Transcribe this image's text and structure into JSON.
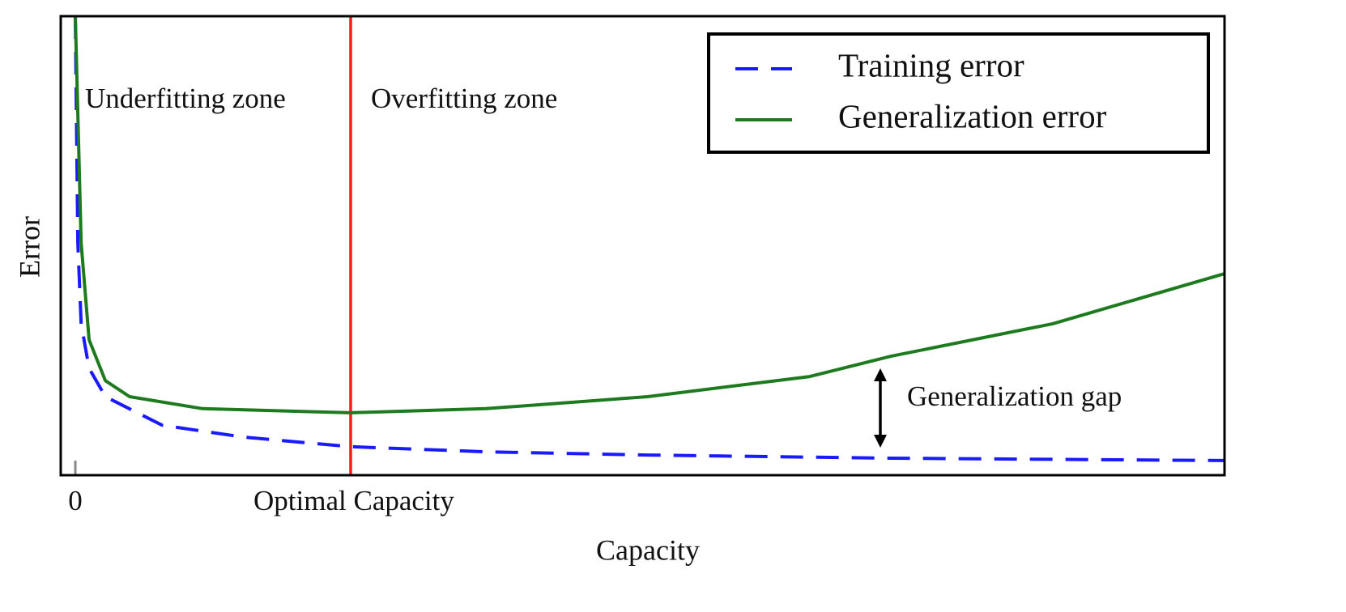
{
  "chart_data": {
    "type": "line",
    "xlabel": "Capacity",
    "ylabel": "Error",
    "xlim": [
      -0.053,
      4.174
    ],
    "ylim": [
      0,
      10
    ],
    "xticks": [
      0,
      {
        "value": 1,
        "label": "Optimal Capacity"
      }
    ],
    "legend": "upper right",
    "annotations": [
      "Underfitting zone",
      "Overfitting zone",
      "Generalization gap"
    ],
    "series": [
      {
        "name": "Training error",
        "color": "#1a1aff",
        "dashed": true,
        "x": [
          0,
          0.009,
          0.021,
          0.05,
          0.109,
          0.315,
          0.609,
          1,
          1.491,
          2.079,
          2.962,
          4.174
        ],
        "values": [
          10,
          5.06,
          3.3,
          2.33,
          1.71,
          1.09,
          0.83,
          0.62,
          0.51,
          0.44,
          0.37,
          0.32
        ]
      },
      {
        "name": "Generalization error",
        "color": "#1e7a1e",
        "dashed": false,
        "x": [
          0,
          0.021,
          0.05,
          0.109,
          0.197,
          0.462,
          1,
          1.491,
          2.079,
          2.668,
          2.962,
          3.55,
          4.174
        ],
        "values": [
          10,
          5.06,
          2.95,
          2.06,
          1.71,
          1.45,
          1.36,
          1.45,
          1.71,
          2.15,
          2.59,
          3.3,
          4.39
        ]
      }
    ]
  }
}
